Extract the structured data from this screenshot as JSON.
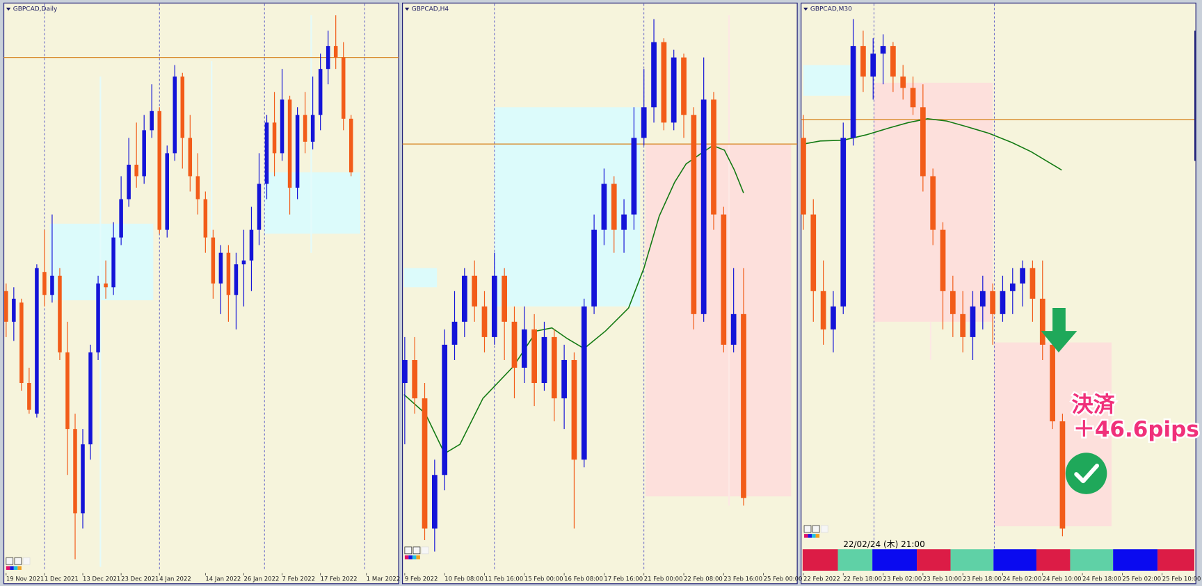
{
  "chart_data": [
    {
      "type": "candlestick",
      "title": "GBPCAD,Daily",
      "up_color": "#1414d8",
      "down_color": "#f25c19",
      "ylim": [
        1.676,
        1.75
      ],
      "categories": [
        "19 Nov 2021",
        null,
        null,
        null,
        null,
        "1 Dec 2021",
        null,
        null,
        null,
        null,
        "13 Dec 2021",
        null,
        null,
        null,
        null,
        "23 Dec 2021",
        null,
        null,
        null,
        null,
        "4 Jan 2022",
        null,
        null,
        null,
        null,
        null,
        "14 Jan 2022",
        null,
        null,
        null,
        null,
        "26 Jan 2022",
        null,
        null,
        null,
        null,
        "7 Feb 2022",
        null,
        null,
        null,
        null,
        "17 Feb 2022",
        null,
        null,
        null,
        null,
        null,
        "1 Mar 2022"
      ],
      "open": [
        1.712,
        1.708,
        1.7105,
        1.7,
        1.696,
        1.7145,
        1.7115,
        1.714,
        1.704,
        1.694,
        1.683,
        1.692,
        1.704,
        1.713,
        1.7125,
        1.719,
        1.724,
        1.7285,
        1.727,
        1.733,
        1.7355,
        1.72,
        1.73,
        1.74,
        1.732,
        1.727,
        1.724,
        1.719,
        1.713,
        1.717,
        1.7115,
        1.7155,
        1.716,
        1.72,
        1.726,
        1.734,
        1.73,
        1.737,
        1.7255,
        1.735,
        1.7315,
        1.735,
        1.741,
        1.744,
        1.7425,
        1.7345,
        null,
        null
      ],
      "high": [
        1.713,
        1.7125,
        1.711,
        1.702,
        1.7155,
        1.72,
        1.722,
        1.715,
        1.708,
        1.696,
        1.694,
        1.705,
        1.714,
        1.716,
        1.721,
        1.727,
        1.732,
        1.734,
        1.735,
        1.739,
        1.736,
        1.731,
        1.7415,
        1.7405,
        1.735,
        1.73,
        1.725,
        1.72,
        1.718,
        1.718,
        1.717,
        1.72,
        1.723,
        1.73,
        1.735,
        1.738,
        1.741,
        1.7375,
        1.736,
        1.738,
        1.74,
        1.743,
        1.746,
        1.748,
        1.7445,
        1.735,
        null,
        null
      ],
      "low": [
        1.706,
        1.7055,
        1.699,
        1.696,
        1.6955,
        1.71,
        1.7105,
        1.703,
        1.688,
        1.677,
        1.681,
        1.69,
        1.703,
        1.711,
        1.7115,
        1.718,
        1.723,
        1.7255,
        1.726,
        1.732,
        1.7195,
        1.719,
        1.729,
        1.728,
        1.725,
        1.722,
        1.717,
        1.711,
        1.709,
        1.708,
        1.707,
        1.71,
        1.712,
        1.718,
        1.724,
        1.727,
        1.729,
        1.722,
        1.724,
        1.73,
        1.7305,
        1.733,
        1.739,
        1.741,
        1.733,
        1.727,
        null,
        null
      ],
      "close": [
        1.708,
        1.711,
        1.7,
        1.6965,
        1.715,
        1.7115,
        1.714,
        1.704,
        1.694,
        1.683,
        1.692,
        1.704,
        1.713,
        1.7125,
        1.719,
        1.724,
        1.7285,
        1.727,
        1.733,
        1.7355,
        1.72,
        1.73,
        1.74,
        1.732,
        1.727,
        1.724,
        1.719,
        1.713,
        1.717,
        1.7115,
        1.7155,
        1.716,
        1.72,
        1.726,
        1.734,
        1.73,
        1.737,
        1.7255,
        1.735,
        1.7315,
        1.735,
        1.741,
        1.744,
        1.7425,
        1.7345,
        1.7275,
        null,
        null
      ]
    },
    {
      "type": "candlestick",
      "title": "GBPCAD,H4",
      "up_color": "#1414d8",
      "down_color": "#f25c19",
      "ylim": [
        1.703,
        1.74
      ],
      "categories": [
        "9 Feb 2022",
        null,
        null,
        null,
        "10 Feb 08:00",
        null,
        null,
        null,
        "11 Feb 16:00",
        null,
        null,
        null,
        "15 Feb 00:00",
        null,
        null,
        null,
        "16 Feb 08:00",
        null,
        null,
        null,
        "17 Feb 16:00",
        null,
        null,
        null,
        "21 Feb 00:00",
        null,
        null,
        null,
        "22 Feb 08:00",
        null,
        null,
        null,
        "23 Feb 16:00",
        null,
        null,
        null,
        "25 Feb 00:00"
      ],
      "open": [
        1.715,
        1.7165,
        1.714,
        1.7055,
        1.709,
        1.7175,
        1.719,
        1.722,
        1.72,
        1.718,
        1.722,
        1.719,
        1.716,
        1.7185,
        1.715,
        1.718,
        1.714,
        1.7165,
        1.71,
        1.72,
        1.725,
        1.728,
        1.725,
        1.726,
        1.731,
        1.733,
        1.73725,
        1.732,
        1.73625,
        1.7325,
        1.7195,
        1.7335,
        1.726,
        1.7175,
        1.7195,
        null,
        null
      ],
      "high": [
        1.718,
        1.718,
        1.715,
        1.71,
        1.7185,
        1.721,
        1.7225,
        1.723,
        1.721,
        1.7235,
        1.7225,
        1.72,
        1.72,
        1.7195,
        1.719,
        1.7185,
        1.7175,
        1.717,
        1.7205,
        1.726,
        1.729,
        1.7285,
        1.727,
        1.733,
        1.7355,
        1.73875,
        1.7375,
        1.73675,
        1.7365,
        1.733,
        1.73625,
        1.734,
        1.7265,
        1.7225,
        1.7225,
        null,
        null
      ],
      "low": [
        1.711,
        1.713,
        1.70475,
        1.704,
        1.708,
        1.7165,
        1.718,
        1.719,
        1.717,
        1.7175,
        1.7165,
        1.714,
        1.715,
        1.7135,
        1.7145,
        1.7125,
        1.712,
        1.7055,
        1.7095,
        1.7195,
        1.724,
        1.7235,
        1.7235,
        1.725,
        1.7305,
        1.732,
        1.7315,
        1.7315,
        1.731,
        1.7185,
        1.719,
        1.725,
        1.717,
        1.717,
        1.707,
        null,
        null
      ],
      "close": [
        1.7165,
        1.714,
        1.7055,
        1.709,
        1.7175,
        1.719,
        1.722,
        1.72,
        1.718,
        1.722,
        1.719,
        1.716,
        1.7185,
        1.715,
        1.718,
        1.714,
        1.7165,
        1.71,
        1.72,
        1.725,
        1.728,
        1.725,
        1.726,
        1.731,
        1.733,
        1.73725,
        1.732,
        1.73625,
        1.7325,
        1.7195,
        1.7335,
        1.726,
        1.7175,
        1.7195,
        1.7075,
        null,
        null
      ]
    },
    {
      "type": "candlestick",
      "title": "GBPCAD,M30",
      "up_color": "#1414d8",
      "down_color": "#f25c19",
      "ylim": [
        1.7165,
        1.735
      ],
      "categories": [
        "22 Feb 2022",
        null,
        null,
        null,
        "22 Feb 18:00",
        null,
        null,
        null,
        "23 Feb 02:00",
        null,
        null,
        null,
        "23 Feb 10:00",
        null,
        null,
        null,
        "23 Feb 18:00",
        null,
        null,
        null,
        "24 Feb 02:00",
        null,
        null,
        null,
        "24 Feb 10:00",
        null,
        null,
        null,
        "24 Feb 18:00",
        null,
        null,
        null,
        "25 Feb 02:00",
        null,
        null,
        null,
        "25 Feb 10:00"
      ],
      "open": [
        1.7305,
        1.728,
        1.7255,
        1.72425,
        1.725,
        1.7305,
        1.7335,
        1.7325,
        1.73325,
        1.7335,
        1.7325,
        1.73213,
        1.7315,
        1.72925,
        1.7275,
        1.7255,
        1.72475,
        1.724,
        1.725,
        1.7255,
        1.72475,
        1.7255,
        1.72575,
        1.72625,
        1.72525,
        1.72375,
        1.72125,
        null,
        null,
        null,
        null,
        null,
        null,
        null,
        null,
        null,
        null
      ],
      "high": [
        1.73125,
        1.7285,
        1.7265,
        1.7255,
        1.731,
        1.73438,
        1.734,
        1.73375,
        1.73388,
        1.73363,
        1.73288,
        1.7325,
        1.73225,
        1.7295,
        1.72775,
        1.726,
        1.7255,
        1.7255,
        1.726,
        1.72575,
        1.726,
        1.72625,
        1.7265,
        1.7265,
        1.7265,
        1.724,
        1.7215,
        null,
        null,
        null,
        null,
        null,
        null,
        null,
        null,
        null,
        null
      ],
      "low": [
        1.7275,
        1.7245,
        1.72375,
        1.7235,
        1.72475,
        1.73025,
        1.732,
        1.73175,
        1.73225,
        1.732,
        1.73175,
        1.73125,
        1.72875,
        1.727,
        1.72425,
        1.724,
        1.7235,
        1.72325,
        1.72425,
        1.72375,
        1.7245,
        1.72475,
        1.725,
        1.7245,
        1.72325,
        1.721,
        1.7175,
        null,
        null,
        null,
        null,
        null,
        null,
        null,
        null,
        null,
        null
      ],
      "close": [
        1.728,
        1.7255,
        1.72425,
        1.725,
        1.7305,
        1.7335,
        1.7325,
        1.73325,
        1.7335,
        1.7325,
        1.73213,
        1.7315,
        1.72925,
        1.7275,
        1.7255,
        1.72475,
        1.724,
        1.725,
        1.7255,
        1.72475,
        1.7255,
        1.72575,
        1.72625,
        1.72525,
        1.72375,
        1.72125,
        1.71775,
        null,
        null,
        null,
        null,
        null,
        null,
        null,
        null,
        null,
        null
      ],
      "annotations": [
        "決済",
        "＋46.6pips"
      ],
      "cursor_label": "22/02/24 (木) 21:00"
    }
  ]
}
